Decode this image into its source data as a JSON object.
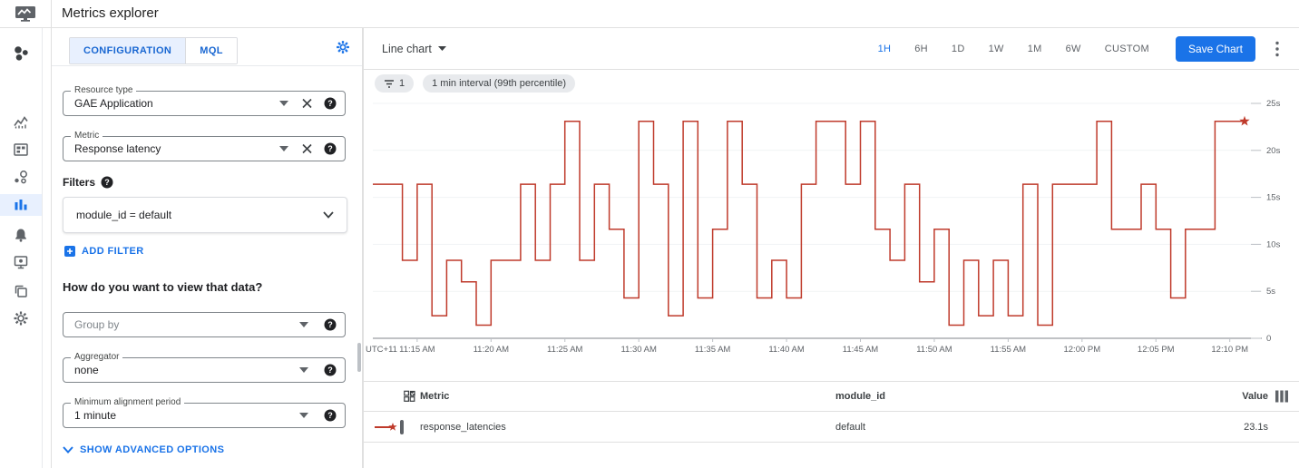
{
  "header": {
    "title": "Metrics explorer"
  },
  "sidebar": {
    "items": [
      {
        "icon": "activity-overview-icon"
      },
      {
        "icon": "monitoring-chart-icon"
      },
      {
        "icon": "dashboards-icon"
      },
      {
        "icon": "services-icon"
      },
      {
        "icon": "metrics-explorer-icon",
        "selected": true
      },
      {
        "icon": "alerting-bell-icon"
      },
      {
        "icon": "uptime-checks-icon"
      },
      {
        "icon": "groups-icon"
      },
      {
        "icon": "settings-gear-icon"
      }
    ],
    "selected_color": "#1a73e8",
    "selected_bg": "#e8f0fe"
  },
  "config": {
    "tabs": [
      {
        "label": "CONFIGURATION",
        "active": true
      },
      {
        "label": "MQL",
        "active": false
      }
    ],
    "resource_type": {
      "label": "Resource type",
      "value": "GAE Application"
    },
    "metric": {
      "label": "Metric",
      "value": "Response latency"
    },
    "filters_label": "Filters",
    "filter": {
      "value": "module_id = default"
    },
    "add_filter_label": "ADD FILTER",
    "view_question": "How do you want to view that data?",
    "group_by": {
      "placeholder": "Group by"
    },
    "aggregator": {
      "label": "Aggregator",
      "value": "none"
    },
    "alignment": {
      "label": "Minimum alignment period",
      "value": "1 minute"
    },
    "show_advanced_label": "SHOW ADVANCED OPTIONS"
  },
  "chart_header": {
    "chart_type": "Line chart",
    "ranges": [
      "1H",
      "6H",
      "1D",
      "1W",
      "1M",
      "6W",
      "CUSTOM"
    ],
    "active_range": "1H",
    "save_button": "Save Chart"
  },
  "chips": {
    "filter_count": "1",
    "interval_chip": "1 min interval (99th percentile)"
  },
  "chart_data": {
    "type": "line",
    "step": true,
    "unit": "s",
    "grid": true,
    "ylim": [
      0,
      26
    ],
    "start_time": "11:12 AM",
    "interval_minutes": 1,
    "timezone_label": "UTC+11",
    "y_ticks": [
      {
        "label": "25s",
        "value": 25
      },
      {
        "label": "20s",
        "value": 20
      },
      {
        "label": "15s",
        "value": 15
      },
      {
        "label": "10s",
        "value": 10
      },
      {
        "label": "5s",
        "value": 5
      },
      {
        "label": "0",
        "value": 0
      }
    ],
    "x_ticks": [
      {
        "label": "UTC+11",
        "minute": null
      },
      {
        "label": "11:15 AM",
        "minute": 3
      },
      {
        "label": "11:20 AM",
        "minute": 8
      },
      {
        "label": "11:25 AM",
        "minute": 13
      },
      {
        "label": "11:30 AM",
        "minute": 18
      },
      {
        "label": "11:35 AM",
        "minute": 23
      },
      {
        "label": "11:40 AM",
        "minute": 28
      },
      {
        "label": "11:45 AM",
        "minute": 33
      },
      {
        "label": "11:50 AM",
        "minute": 38
      },
      {
        "label": "11:55 AM",
        "minute": 43
      },
      {
        "label": "12:00 PM",
        "minute": 48
      },
      {
        "label": "12:05 PM",
        "minute": 53
      },
      {
        "label": "12:10 PM",
        "minute": 58
      }
    ],
    "series": [
      {
        "name": "response_latencies",
        "color": "#bf3a2b",
        "end_marker": "star",
        "values": [
          16.4,
          16.4,
          8.3,
          16.4,
          2.4,
          8.3,
          6.0,
          1.4,
          8.3,
          8.3,
          16.4,
          8.3,
          16.4,
          23.1,
          8.3,
          16.4,
          11.6,
          4.3,
          23.1,
          16.4,
          2.4,
          23.1,
          4.3,
          11.6,
          23.1,
          16.4,
          4.3,
          8.3,
          4.3,
          16.4,
          23.1,
          23.1,
          16.4,
          23.1,
          11.6,
          8.3,
          16.4,
          6.0,
          11.6,
          1.4,
          8.3,
          2.4,
          8.3,
          2.4,
          16.4,
          1.4,
          16.4,
          16.4,
          16.4,
          23.1,
          11.6,
          11.6,
          16.4,
          11.6,
          4.3,
          11.6,
          11.6,
          23.1,
          23.1
        ]
      }
    ]
  },
  "table": {
    "headers": {
      "metric": "Metric",
      "module_id": "module_id",
      "value": "Value"
    },
    "rows": [
      {
        "metric": "response_latencies",
        "module_id": "default",
        "value": "23.1s"
      }
    ]
  }
}
